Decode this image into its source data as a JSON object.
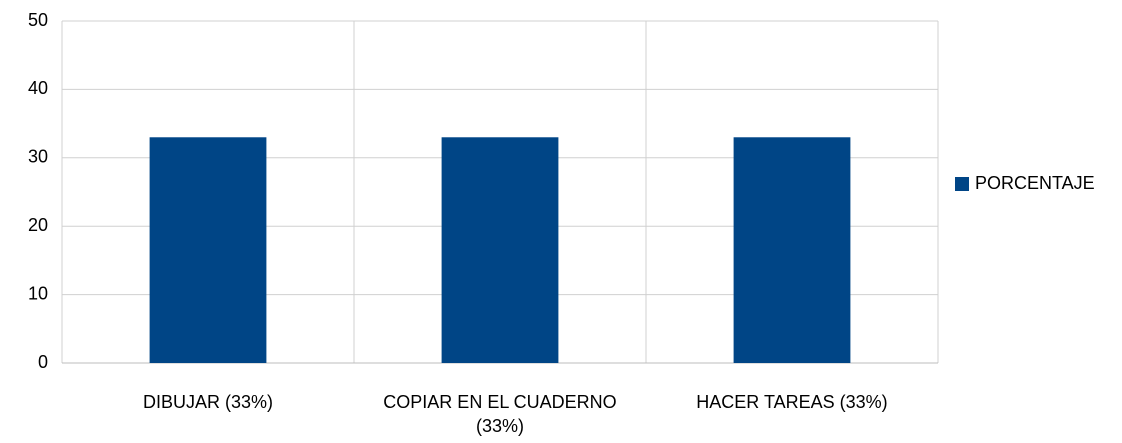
{
  "chart_data": {
    "type": "bar",
    "categories": [
      "DIBUJAR (33%)",
      "COPIAR EN EL CUADERNO (33%)",
      "HACER TAREAS (33%)"
    ],
    "series": [
      {
        "name": "PORCENTAJE",
        "color": "#004586",
        "values": [
          33,
          33,
          33
        ]
      }
    ],
    "ylim": [
      0,
      50
    ],
    "yticks": [
      0,
      10,
      20,
      30,
      40,
      50
    ],
    "grid": true,
    "legend": "right"
  }
}
